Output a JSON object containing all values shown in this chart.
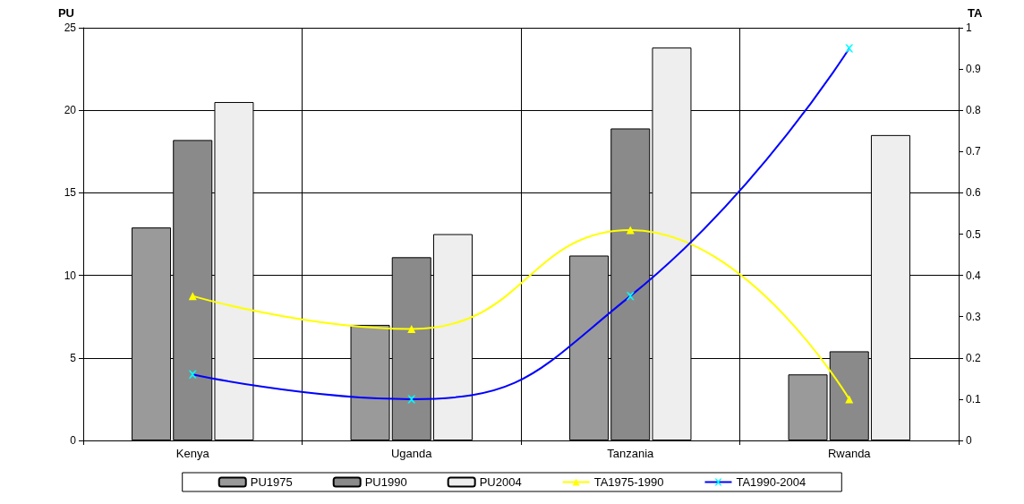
{
  "chart_data": {
    "type": "bar",
    "ylabel": "PU",
    "y2label": "TA",
    "categories": [
      "Kenya",
      "Uganda",
      "Tanzania",
      "Rwanda"
    ],
    "series": [
      {
        "name": "PU1975",
        "color": "#9a9a9a",
        "values": [
          12.9,
          7.0,
          11.2,
          4.0
        ]
      },
      {
        "name": "PU1990",
        "color": "#8a8a8a",
        "values": [
          18.2,
          11.1,
          18.9,
          5.4
        ]
      },
      {
        "name": "PU2004",
        "color": "#eeeeee",
        "values": [
          20.5,
          12.5,
          23.8,
          18.5
        ]
      },
      {
        "name": "TA1975-1990",
        "type": "line",
        "axis": "y2",
        "color": "#ffff00",
        "marker": "triangle",
        "values": [
          0.35,
          0.27,
          0.51,
          0.1
        ]
      },
      {
        "name": "TA1990-2004",
        "type": "line",
        "axis": "y2",
        "color": "#0000ff",
        "marker": "cross",
        "values": [
          0.16,
          0.1,
          0.35,
          0.95
        ]
      }
    ],
    "ylim": [
      0,
      25
    ],
    "yticks": [
      0,
      5,
      10,
      15,
      20,
      25
    ],
    "y2lim": [
      0,
      1
    ],
    "y2ticks": [
      0,
      0.1,
      0.2,
      0.3,
      0.4,
      0.5,
      0.6,
      0.7,
      0.8,
      0.9,
      1
    ],
    "grid": true,
    "legend": "bottom",
    "line_style": "solid"
  }
}
